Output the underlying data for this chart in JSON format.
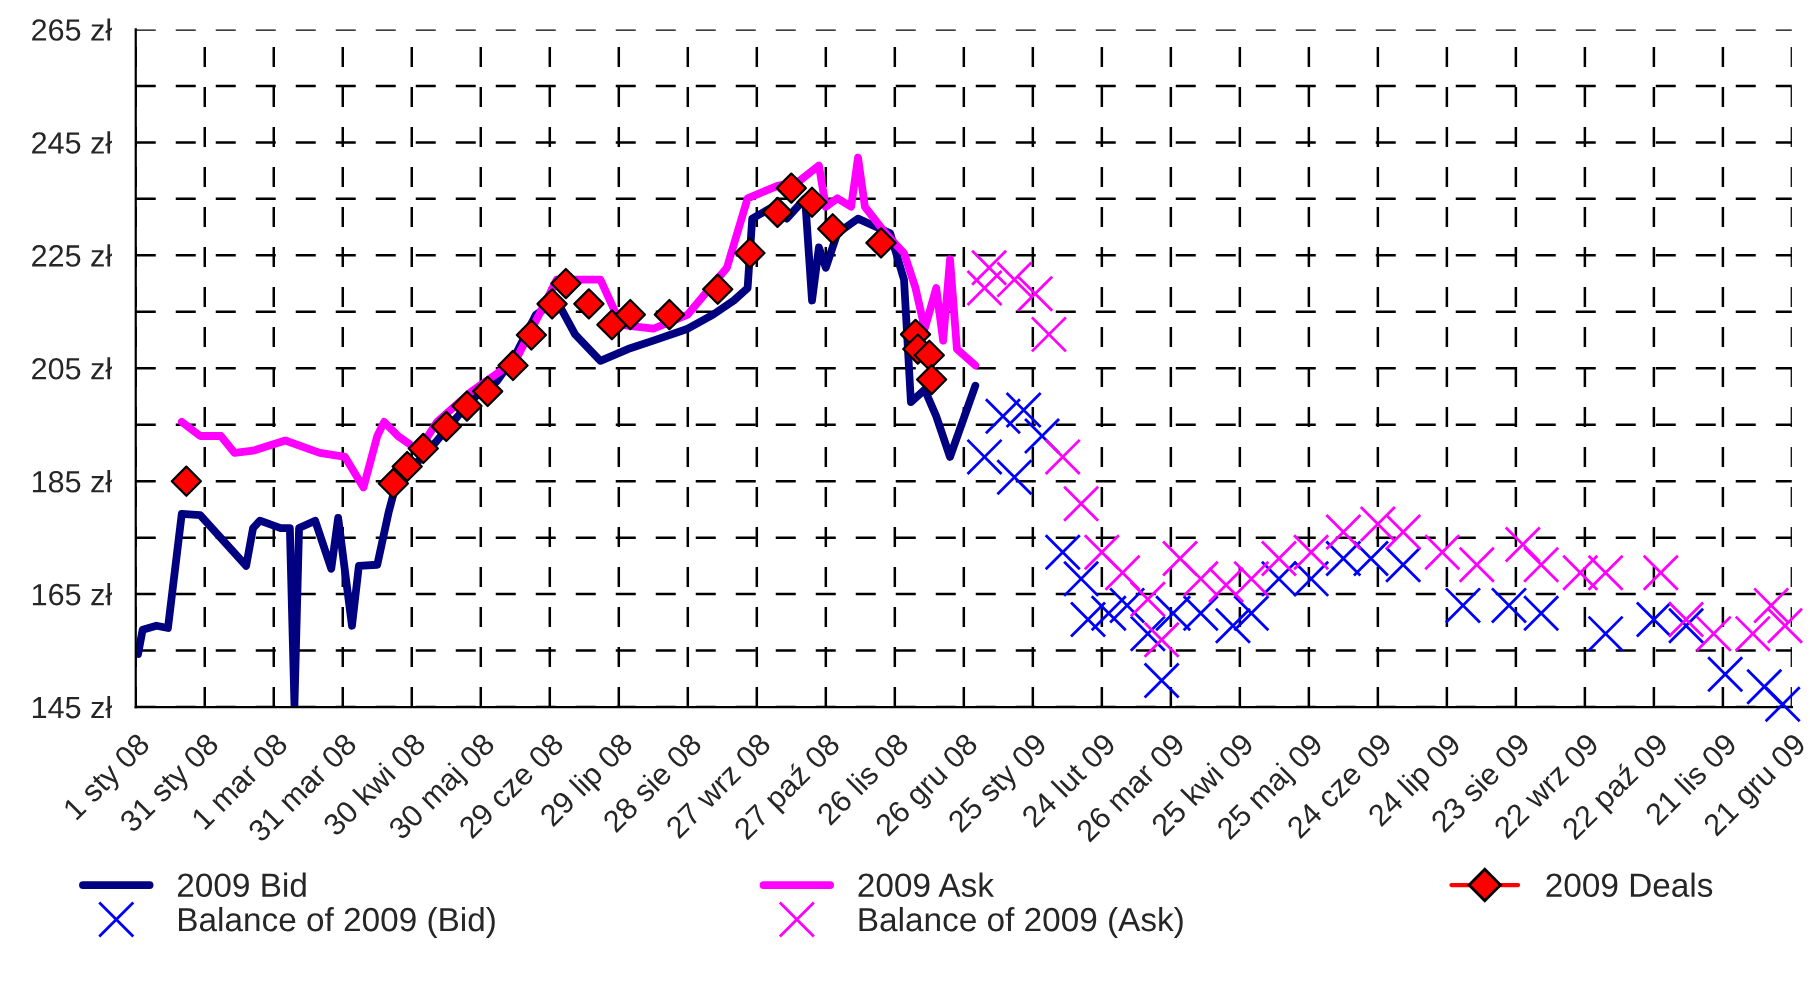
{
  "chart_data": {
    "type": "line",
    "xlim": [
      "2008-01-01",
      "2009-12-21"
    ],
    "xticks": [
      {
        "value": "2008-01-01",
        "label": "1 sty 08"
      },
      {
        "value": "2008-01-31",
        "label": "31 sty 08"
      },
      {
        "value": "2008-03-01",
        "label": "1 mar 08"
      },
      {
        "value": "2008-03-31",
        "label": "31 mar 08"
      },
      {
        "value": "2008-04-30",
        "label": "30 kwi 08"
      },
      {
        "value": "2008-05-30",
        "label": "30 maj 08"
      },
      {
        "value": "2008-06-29",
        "label": "29 cze 08"
      },
      {
        "value": "2008-07-29",
        "label": "29 lip 08"
      },
      {
        "value": "2008-08-28",
        "label": "28 sie 08"
      },
      {
        "value": "2008-09-27",
        "label": "27 wrz 08"
      },
      {
        "value": "2008-10-27",
        "label": "27 paź 08"
      },
      {
        "value": "2008-11-26",
        "label": "26 lis 08"
      },
      {
        "value": "2008-12-26",
        "label": "26 gru 08"
      },
      {
        "value": "2009-01-25",
        "label": "25 sty 09"
      },
      {
        "value": "2009-02-24",
        "label": "24 lut 09"
      },
      {
        "value": "2009-03-26",
        "label": "26 mar 09"
      },
      {
        "value": "2009-04-25",
        "label": "25 kwi 09"
      },
      {
        "value": "2009-05-25",
        "label": "25 maj 09"
      },
      {
        "value": "2009-06-24",
        "label": "24 cze 09"
      },
      {
        "value": "2009-07-24",
        "label": "24 lip 09"
      },
      {
        "value": "2009-08-23",
        "label": "23 sie 09"
      },
      {
        "value": "2009-09-22",
        "label": "22 wrz 09"
      },
      {
        "value": "2009-10-22",
        "label": "22 paź 09"
      },
      {
        "value": "2009-11-21",
        "label": "21 lis 09"
      },
      {
        "value": "2009-12-21",
        "label": "21 gru 09"
      }
    ],
    "ylim": [
      145,
      265
    ],
    "yticks": [
      {
        "value": 145,
        "label": "145 zł"
      },
      {
        "value": 155,
        "label": null
      },
      {
        "value": 165,
        "label": "165 zł"
      },
      {
        "value": 175,
        "label": null
      },
      {
        "value": 185,
        "label": "185 zł"
      },
      {
        "value": 195,
        "label": null
      },
      {
        "value": 205,
        "label": "205 zł"
      },
      {
        "value": 215,
        "label": null
      },
      {
        "value": 225,
        "label": "225 zł"
      },
      {
        "value": 235,
        "label": null
      },
      {
        "value": 245,
        "label": "245 zł"
      },
      {
        "value": 255,
        "label": null
      },
      {
        "value": 265,
        "label": "265 zł"
      }
    ],
    "grid": true,
    "legend": "bottom",
    "series": [
      {
        "name": "2009 Bid",
        "marker": "none",
        "color": "#000080",
        "x": [
          "2008-01-02",
          "2008-01-04",
          "2008-01-10",
          "2008-01-15",
          "2008-01-21",
          "2008-01-29",
          "2008-02-18",
          "2008-02-21",
          "2008-02-24",
          "2008-03-04",
          "2008-03-08",
          "2008-03-10",
          "2008-03-12",
          "2008-03-19",
          "2008-03-26",
          "2008-03-29",
          "2008-04-04",
          "2008-04-07",
          "2008-04-15",
          "2008-04-20",
          "2008-04-24",
          "2008-05-03",
          "2008-05-11",
          "2008-05-20",
          "2008-05-28",
          "2008-06-06",
          "2008-06-14",
          "2008-06-23",
          "2008-07-02",
          "2008-07-10",
          "2008-07-21",
          "2008-08-02",
          "2008-08-13",
          "2008-08-28",
          "2008-09-08",
          "2008-09-17",
          "2008-09-23",
          "2008-09-25",
          "2008-10-04",
          "2008-10-10",
          "2008-10-18",
          "2008-10-21",
          "2008-10-24",
          "2008-10-27",
          "2008-11-01",
          "2008-11-10",
          "2008-11-18",
          "2008-11-24",
          "2008-11-30",
          "2008-12-03",
          "2008-12-09",
          "2008-12-14",
          "2008-12-20",
          "2008-12-31"
        ],
        "values": [
          154.4,
          158.7,
          159.4,
          159.0,
          179.2,
          179.0,
          170.0,
          176.7,
          178.0,
          176.7,
          176.7,
          145.4,
          176.7,
          178.0,
          169.5,
          178.5,
          159.4,
          170.0,
          170.2,
          179.6,
          185.7,
          188.6,
          192.2,
          196.5,
          200.1,
          202.7,
          207.3,
          214.5,
          217.0,
          211.0,
          206.3,
          208.4,
          209.9,
          212.0,
          214.5,
          217.0,
          219.2,
          231.5,
          233.6,
          231.5,
          235.1,
          217.0,
          226.4,
          222.8,
          228.9,
          231.5,
          230.0,
          228.9,
          220.7,
          199.0,
          201.2,
          196.5,
          189.3,
          201.9
        ]
      },
      {
        "name": "2009 Ask",
        "marker": "none",
        "color": "#ff00ff",
        "x": [
          "2008-01-21",
          "2008-01-29",
          "2008-02-07",
          "2008-02-13",
          "2008-02-21",
          "2008-03-06",
          "2008-03-21",
          "2008-04-01",
          "2008-04-09",
          "2008-04-15",
          "2008-04-18",
          "2008-04-24",
          "2008-05-03",
          "2008-05-11",
          "2008-05-26",
          "2008-06-14",
          "2008-06-29",
          "2008-07-02",
          "2008-07-21",
          "2008-07-30",
          "2008-08-13",
          "2008-08-28",
          "2008-09-14",
          "2008-09-23",
          "2008-10-06",
          "2008-10-15",
          "2008-10-24",
          "2008-10-27",
          "2008-11-01",
          "2008-11-07",
          "2008-11-10",
          "2008-11-13",
          "2008-11-22",
          "2008-11-30",
          "2008-12-05",
          "2008-12-09",
          "2008-12-14",
          "2008-12-17",
          "2008-12-20",
          "2008-12-23",
          "2008-12-31"
        ],
        "values": [
          195.5,
          193.0,
          193.0,
          190.0,
          190.4,
          192.2,
          190.0,
          189.3,
          183.9,
          193.0,
          195.5,
          193.0,
          190.4,
          195.5,
          200.9,
          206.3,
          218.2,
          220.7,
          220.7,
          212.7,
          212.0,
          214.5,
          222.8,
          235.1,
          237.3,
          238.0,
          240.9,
          233.6,
          235.1,
          233.6,
          242.3,
          233.6,
          228.9,
          225.4,
          219.2,
          212.0,
          219.2,
          209.9,
          224.3,
          208.4,
          205.5
        ]
      },
      {
        "name": "2009 Deals",
        "type": "scatter",
        "marker": "diamond",
        "color": "#ff0000",
        "x": [
          "2008-01-23",
          "2008-04-22",
          "2008-04-28",
          "2008-05-05",
          "2008-05-15",
          "2008-05-24",
          "2008-06-02",
          "2008-06-13",
          "2008-06-21",
          "2008-06-30",
          "2008-07-06",
          "2008-07-16",
          "2008-07-26",
          "2008-08-03",
          "2008-08-20",
          "2008-09-10",
          "2008-09-24",
          "2008-10-06",
          "2008-10-12",
          "2008-10-21",
          "2008-10-30",
          "2008-11-20",
          "2008-12-05",
          "2008-12-06",
          "2008-12-11",
          "2008-12-12"
        ],
        "values": [
          185.0,
          184.6,
          187.6,
          190.8,
          194.7,
          198.3,
          200.9,
          205.5,
          210.9,
          216.4,
          220.0,
          216.4,
          212.7,
          214.5,
          214.5,
          219.0,
          225.4,
          232.6,
          236.9,
          234.4,
          229.7,
          227.2,
          211.0,
          208.4,
          207.3,
          203.0
        ]
      },
      {
        "name": "Balance of 2009 (Bid)",
        "type": "scatter",
        "marker": "cross",
        "color": "#0000ff",
        "x": [
          "2009-01-04",
          "2009-01-12",
          "2009-01-17",
          "2009-01-21",
          "2009-01-29",
          "2009-02-07",
          "2009-02-15",
          "2009-02-18",
          "2009-02-27",
          "2009-03-07",
          "2009-03-16",
          "2009-03-22",
          "2009-03-27",
          "2009-04-08",
          "2009-04-22",
          "2009-04-30",
          "2009-05-12",
          "2009-05-26",
          "2009-06-09",
          "2009-06-21",
          "2009-07-05",
          "2009-07-31",
          "2009-08-20",
          "2009-09-03",
          "2009-10-01",
          "2009-10-22",
          "2009-11-05",
          "2009-11-22",
          "2009-12-09",
          "2009-12-17"
        ],
        "values": [
          189.3,
          196.5,
          185.7,
          197.6,
          193.0,
          172.4,
          167.7,
          160.5,
          161.6,
          163.0,
          158.0,
          149.7,
          161.6,
          161.6,
          159.4,
          161.6,
          167.7,
          167.7,
          171.3,
          171.3,
          170.2,
          163.0,
          163.0,
          161.6,
          158.0,
          160.5,
          159.4,
          150.8,
          148.6,
          145.5
        ]
      },
      {
        "name": "Balance of 2009 (Ask)",
        "type": "scatter",
        "marker": "cross",
        "color": "#ff00ff",
        "x": [
          "2009-01-04",
          "2009-01-06",
          "2009-01-17",
          "2009-01-26",
          "2009-02-01",
          "2009-02-07",
          "2009-02-15",
          "2009-02-24",
          "2009-03-05",
          "2009-03-16",
          "2009-03-22",
          "2009-03-30",
          "2009-04-08",
          "2009-04-19",
          "2009-04-30",
          "2009-05-12",
          "2009-05-26",
          "2009-06-09",
          "2009-06-24",
          "2009-07-05",
          "2009-07-22",
          "2009-08-06",
          "2009-08-26",
          "2009-09-03",
          "2009-09-20",
          "2009-10-01",
          "2009-10-25",
          "2009-11-05",
          "2009-11-17",
          "2009-12-04",
          "2009-12-12",
          "2009-12-18"
        ],
        "values": [
          219.2,
          222.8,
          220.7,
          218.2,
          211.0,
          189.3,
          181.0,
          172.4,
          168.8,
          164.1,
          156.9,
          171.3,
          167.7,
          166.6,
          167.7,
          171.3,
          172.4,
          176.0,
          177.4,
          176.0,
          172.4,
          170.2,
          173.8,
          170.2,
          168.8,
          168.8,
          168.8,
          160.5,
          158.0,
          158.0,
          163.0,
          159.4
        ]
      }
    ]
  }
}
